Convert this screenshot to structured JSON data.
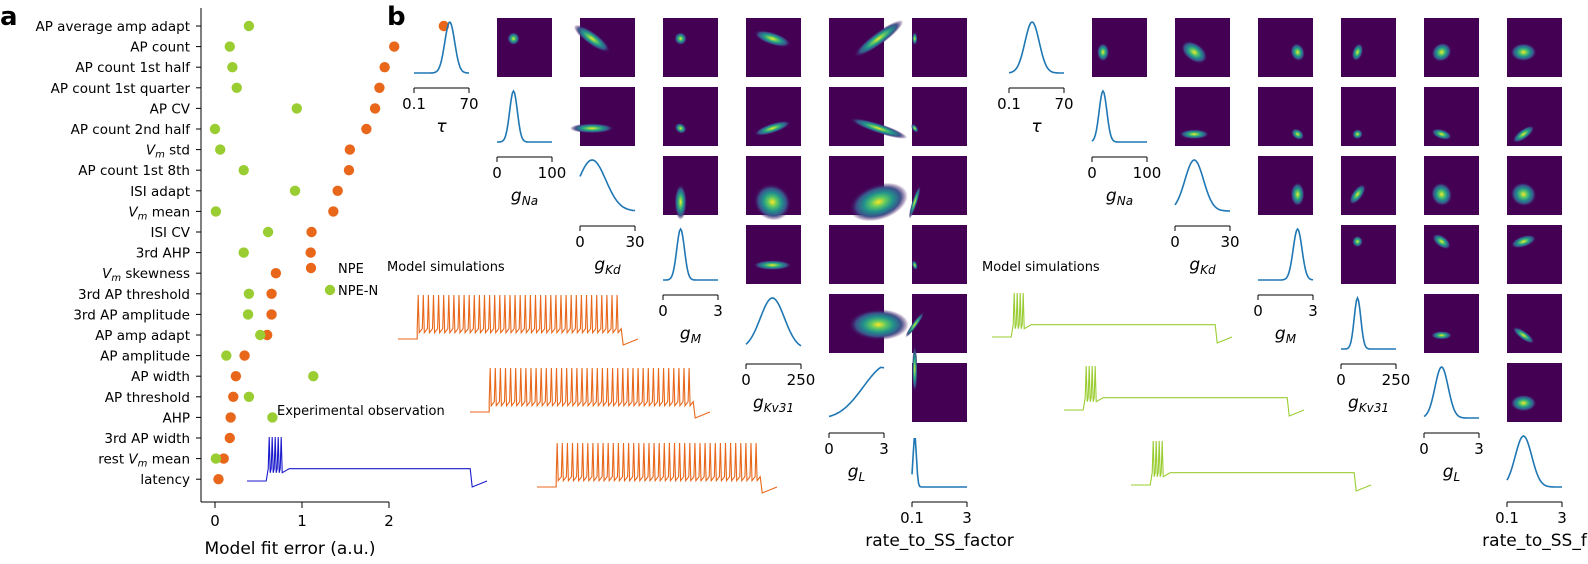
{
  "panel_a": {
    "letter": "a",
    "chart_data": {
      "type": "scatter",
      "orientation": "horizontal",
      "xlabel": "Model fit error (a.u.)",
      "xticks": [
        0,
        1,
        2
      ],
      "xlim": [
        -0.12,
        2.75
      ],
      "categories": [
        "AP average amp adapt",
        "AP count",
        "AP count 1st half",
        "AP count 1st quarter",
        "AP CV",
        "AP count 2nd half",
        "V_m std",
        "AP count 1st 8th",
        "ISI adapt",
        "V_m mean",
        "ISI CV",
        "3rd AHP",
        "V_m skewness",
        "3rd AP threshold",
        "3rd AP amplitude",
        "AP amp adapt",
        "AP amplitude",
        "AP width",
        "AP threshold",
        "AHP",
        "3rd AP width",
        "rest V_m mean",
        "latency"
      ],
      "series": [
        {
          "name": "NPE",
          "color": "#e8671a",
          "values": [
            2.63,
            2.06,
            1.95,
            1.89,
            1.84,
            1.74,
            1.55,
            1.54,
            1.41,
            1.36,
            1.11,
            1.1,
            0.7,
            0.65,
            0.65,
            0.6,
            0.34,
            0.24,
            0.21,
            0.18,
            0.17,
            0.1,
            0.04
          ]
        },
        {
          "name": "NPE-N",
          "color": "#9acd32",
          "values": [
            0.39,
            0.17,
            0.2,
            0.25,
            0.94,
            0.0,
            0.06,
            0.33,
            0.92,
            0.01,
            0.61,
            0.33,
            null,
            0.39,
            0.38,
            0.52,
            0.13,
            1.13,
            0.39,
            0.66,
            null,
            0.01,
            null
          ]
        }
      ],
      "legend": "center-right"
    }
  },
  "panel_b": {
    "letter": "b",
    "notes": {
      "model_left": "Model simulations",
      "model_right": "Model simulations",
      "experimental": "Experimental observation"
    },
    "matrices": [
      {
        "color_diag": "#1f77b4",
        "params": [
          {
            "label": "τ",
            "sub": "",
            "ticks": [
              "0.1",
              "70"
            ],
            "peak": 0.65,
            "width": 0.09
          },
          {
            "label": "g",
            "sub": "Na",
            "ticks": [
              "0",
              "100"
            ],
            "peak": 0.3,
            "width": 0.07
          },
          {
            "label": "g",
            "sub": "Kd",
            "ticks": [
              "0",
              "30"
            ],
            "peak": 0.22,
            "width": 0.25
          },
          {
            "label": "g",
            "sub": "M",
            "ticks": [
              "0",
              "3"
            ],
            "peak": 0.32,
            "width": 0.07
          },
          {
            "label": "g",
            "sub": "Kv31",
            "ticks": [
              "0",
              "250"
            ],
            "peak": 0.48,
            "width": 0.22
          },
          {
            "label": "g",
            "sub": "L",
            "ticks": [
              "0",
              "3"
            ],
            "peak": 0.9,
            "width": 0.4
          },
          {
            "label": "rate_to_SS_factor",
            "sub": "",
            "ticks": [
              "0.1",
              "3"
            ],
            "peak": 0.05,
            "width": 0.03
          }
        ]
      },
      {
        "color_diag": "#1f77b4",
        "params": [
          {
            "label": "τ",
            "sub": "",
            "ticks": [
              "0.1",
              "70"
            ],
            "peak": 0.42,
            "width": 0.13
          },
          {
            "label": "g",
            "sub": "Na",
            "ticks": [
              "0",
              "100"
            ],
            "peak": 0.2,
            "width": 0.07
          },
          {
            "label": "g",
            "sub": "Kd",
            "ticks": [
              "0",
              "30"
            ],
            "peak": 0.35,
            "width": 0.17
          },
          {
            "label": "g",
            "sub": "M",
            "ticks": [
              "0",
              "3"
            ],
            "peak": 0.72,
            "width": 0.08
          },
          {
            "label": "g",
            "sub": "Kv31",
            "ticks": [
              "0",
              "250"
            ],
            "peak": 0.3,
            "width": 0.06
          },
          {
            "label": "g",
            "sub": "L",
            "ticks": [
              "0",
              "3"
            ],
            "peak": 0.32,
            "width": 0.12
          },
          {
            "label": "rate_to_SS_f",
            "sub": "",
            "ticks": [
              "0.1",
              "3"
            ],
            "peak": 0.3,
            "width": 0.15
          }
        ]
      }
    ],
    "traces": {
      "experimental_color": "#1a1acc",
      "npe_color": "#e8671a",
      "npen_color": "#9acd32"
    }
  }
}
